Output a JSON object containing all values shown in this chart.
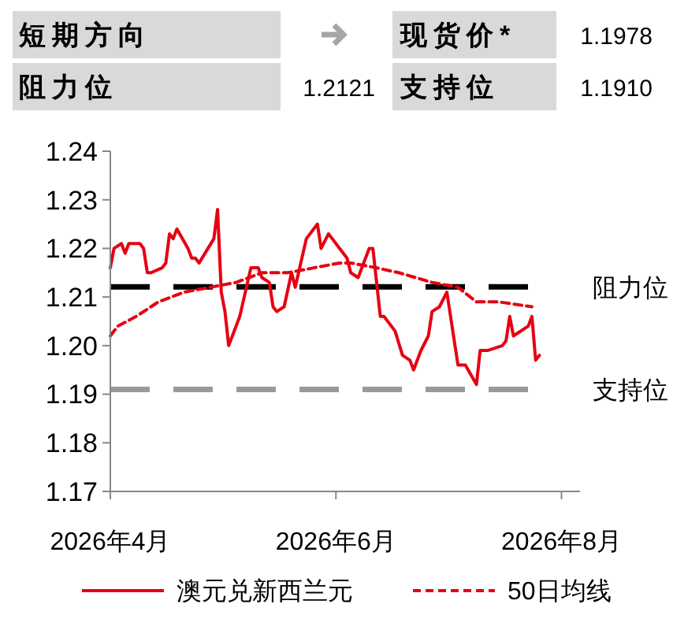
{
  "chart_data": {
    "type": "line",
    "annotations": [
      "短期方向",
      "现货价*",
      "1.1978",
      "阻力位",
      "1.2121",
      "支持位",
      "1.1910"
    ],
    "xlim": [
      "2026-04-01",
      "2026-08-06"
    ],
    "xticks": [
      {
        "value": "2026-04-01",
        "label": "2026年4月"
      },
      {
        "value": "2026-06-01",
        "label": "2026年6月"
      },
      {
        "value": "2026-08-01",
        "label": "2026年8月"
      }
    ],
    "ylim": [
      1.17,
      1.24
    ],
    "yticks": [
      1.17,
      1.18,
      1.19,
      {
        "value": 1.2,
        "label": "1.20"
      },
      1.21,
      1.22,
      1.23,
      1.24
    ],
    "legend": "bottom",
    "ref_lines": [
      {
        "axis": "y",
        "value": 1.2121,
        "label": "阻力位",
        "color": "#000000",
        "line_style": "dashed"
      },
      {
        "axis": "y",
        "value": 1.191,
        "label": "支持位",
        "color": "#999999",
        "line_style": "dashed"
      }
    ],
    "series": [
      {
        "name": "澳元兑新西兰元",
        "color": "#e60012",
        "line_style": "solid",
        "x": [
          "2026-04-01",
          "2026-04-02",
          "2026-04-04",
          "2026-04-05",
          "2026-04-06",
          "2026-04-09",
          "2026-04-10",
          "2026-04-11",
          "2026-04-12",
          "2026-04-15",
          "2026-04-16",
          "2026-04-17",
          "2026-04-18",
          "2026-04-19",
          "2026-04-22",
          "2026-04-23",
          "2026-04-24",
          "2026-04-25",
          "2026-04-29",
          "2026-04-30",
          "2026-05-01",
          "2026-05-02",
          "2026-05-03",
          "2026-05-06",
          "2026-05-09",
          "2026-05-11",
          "2026-05-12",
          "2026-05-14",
          "2026-05-15",
          "2026-05-16",
          "2026-05-18",
          "2026-05-20",
          "2026-05-21",
          "2026-05-24",
          "2026-05-27",
          "2026-05-28",
          "2026-05-30",
          "2026-06-02",
          "2026-06-04",
          "2026-06-05",
          "2026-06-07",
          "2026-06-10",
          "2026-06-11",
          "2026-06-13",
          "2026-06-14",
          "2026-06-17",
          "2026-06-19",
          "2026-06-21",
          "2026-06-22",
          "2026-06-24",
          "2026-06-26",
          "2026-06-27",
          "2026-06-29",
          "2026-07-01",
          "2026-07-04",
          "2026-07-06",
          "2026-07-09",
          "2026-07-10",
          "2026-07-12",
          "2026-07-16",
          "2026-07-17",
          "2026-07-18",
          "2026-07-19",
          "2026-07-23",
          "2026-07-24",
          "2026-07-25",
          "2026-07-26"
        ],
        "values": [
          1.216,
          1.22,
          1.221,
          1.219,
          1.221,
          1.221,
          1.22,
          1.215,
          1.215,
          1.216,
          1.217,
          1.223,
          1.222,
          1.224,
          1.22,
          1.218,
          1.218,
          1.217,
          1.222,
          1.228,
          1.211,
          1.207,
          1.2,
          1.206,
          1.216,
          1.216,
          1.214,
          1.213,
          1.208,
          1.207,
          1.208,
          1.215,
          1.212,
          1.222,
          1.225,
          1.22,
          1.223,
          1.22,
          1.218,
          1.215,
          1.214,
          1.22,
          1.22,
          1.206,
          1.206,
          1.203,
          1.198,
          1.197,
          1.195,
          1.199,
          1.202,
          1.207,
          1.208,
          1.211,
          1.196,
          1.196,
          1.192,
          1.199,
          1.199,
          1.2,
          1.201,
          1.206,
          1.202,
          1.204,
          1.206,
          1.197,
          1.198
        ]
      },
      {
        "name": "50日均线",
        "color": "#e60012",
        "line_style": "dashed",
        "x": [
          "2026-04-01",
          "2026-04-03",
          "2026-04-08",
          "2026-04-14",
          "2026-04-21",
          "2026-04-28",
          "2026-05-05",
          "2026-05-12",
          "2026-05-19",
          "2026-05-26",
          "2026-06-02",
          "2026-06-05",
          "2026-06-12",
          "2026-06-18",
          "2026-06-27",
          "2026-07-04",
          "2026-07-09",
          "2026-07-15",
          "2026-07-24"
        ],
        "values": [
          1.202,
          1.204,
          1.206,
          1.209,
          1.211,
          1.212,
          1.213,
          1.215,
          1.215,
          1.216,
          1.217,
          1.217,
          1.216,
          1.215,
          1.213,
          1.212,
          1.209,
          1.209,
          1.208
        ]
      }
    ]
  }
}
